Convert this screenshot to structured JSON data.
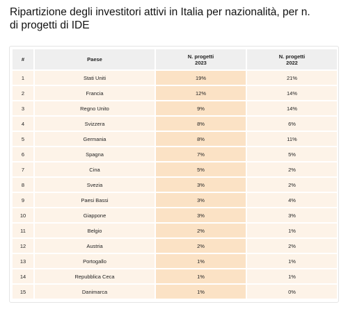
{
  "header": {
    "title": "Ripartizione degli investitori attivi in Italia per nazionalità, per n. di progetti di IDE"
  },
  "table": {
    "columns": [
      "#",
      "Paese",
      "N. progetti\n2023",
      "N. progetti\n2022"
    ],
    "rows": [
      [
        "1",
        "Stati Uniti",
        "19%",
        "21%"
      ],
      [
        "2",
        "Francia",
        "12%",
        "14%"
      ],
      [
        "3",
        "Regno Unito",
        "9%",
        "14%"
      ],
      [
        "4",
        "Svizzera",
        "8%",
        "6%"
      ],
      [
        "5",
        "Germania",
        "8%",
        "11%"
      ],
      [
        "6",
        "Spagna",
        "7%",
        "5%"
      ],
      [
        "7",
        "Cina",
        "5%",
        "2%"
      ],
      [
        "8",
        "Svezia",
        "3%",
        "2%"
      ],
      [
        "9",
        "Paesi Bassi",
        "3%",
        "4%"
      ],
      [
        "10",
        "Giappone",
        "3%",
        "3%"
      ],
      [
        "11",
        "Belgio",
        "2%",
        "1%"
      ],
      [
        "12",
        "Austria",
        "2%",
        "2%"
      ],
      [
        "13",
        "Portogallo",
        "1%",
        "1%"
      ],
      [
        "14",
        "Repubblica Ceca",
        "1%",
        "1%"
      ],
      [
        "15",
        "Danimarca",
        "1%",
        "0%"
      ]
    ]
  }
}
